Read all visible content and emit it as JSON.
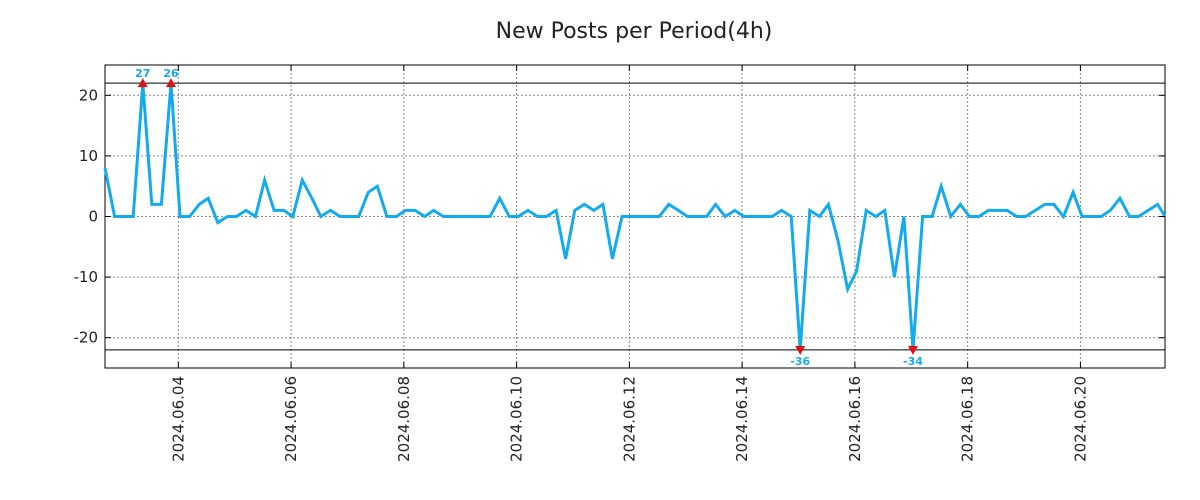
{
  "chart_data": {
    "type": "line",
    "title": "New Posts per Period(4h)",
    "xlabel": "",
    "ylabel": "",
    "xlim_days": [
      -1.3,
      17.5
    ],
    "ylim": [
      -25,
      25
    ],
    "grid": true,
    "clip_range": [
      -22,
      22
    ],
    "series_color": "#14aaee",
    "marker_color": "#dd1111",
    "annotation_color": "#14aaee",
    "y_ticks": [
      20,
      10,
      0,
      -10,
      -20
    ],
    "x_ticks": [
      {
        "day": 0,
        "label": "2024.06.04"
      },
      {
        "day": 2,
        "label": "2024.06.06"
      },
      {
        "day": 4,
        "label": "2024.06.08"
      },
      {
        "day": 6,
        "label": "2024.06.10"
      },
      {
        "day": 8,
        "label": "2024.06.12"
      },
      {
        "day": 10,
        "label": "2024.06.14"
      },
      {
        "day": 12,
        "label": "2024.06.16"
      },
      {
        "day": 14,
        "label": "2024.06.18"
      },
      {
        "day": 16,
        "label": "2024.06.20"
      }
    ],
    "series": [
      {
        "name": "New Posts",
        "points": [
          [
            -1.3,
            8
          ],
          [
            -1.13,
            0
          ],
          [
            -0.97,
            0
          ],
          [
            -0.8,
            0
          ],
          [
            -0.63,
            27
          ],
          [
            -0.47,
            2
          ],
          [
            -0.3,
            2
          ],
          [
            -0.13,
            26
          ],
          [
            0.03,
            0
          ],
          [
            0.2,
            0
          ],
          [
            0.37,
            2
          ],
          [
            0.53,
            3
          ],
          [
            0.7,
            -1
          ],
          [
            0.87,
            0
          ],
          [
            1.03,
            0
          ],
          [
            1.2,
            1
          ],
          [
            1.37,
            0
          ],
          [
            1.53,
            6
          ],
          [
            1.7,
            1
          ],
          [
            1.87,
            1
          ],
          [
            2.03,
            0
          ],
          [
            2.2,
            6
          ],
          [
            2.37,
            3
          ],
          [
            2.53,
            0
          ],
          [
            2.7,
            1
          ],
          [
            2.87,
            0
          ],
          [
            3.03,
            0
          ],
          [
            3.2,
            0
          ],
          [
            3.37,
            4
          ],
          [
            3.53,
            5
          ],
          [
            3.7,
            0
          ],
          [
            3.87,
            0
          ],
          [
            4.03,
            1
          ],
          [
            4.2,
            1
          ],
          [
            4.37,
            0
          ],
          [
            4.53,
            1
          ],
          [
            4.7,
            0
          ],
          [
            4.87,
            0
          ],
          [
            5.03,
            0
          ],
          [
            5.2,
            0
          ],
          [
            5.37,
            0
          ],
          [
            5.53,
            0
          ],
          [
            5.7,
            3
          ],
          [
            5.87,
            0
          ],
          [
            6.03,
            0
          ],
          [
            6.2,
            1
          ],
          [
            6.37,
            0
          ],
          [
            6.53,
            0
          ],
          [
            6.7,
            1
          ],
          [
            6.87,
            -7
          ],
          [
            7.03,
            1
          ],
          [
            7.2,
            2
          ],
          [
            7.37,
            1
          ],
          [
            7.53,
            2
          ],
          [
            7.7,
            -7
          ],
          [
            7.87,
            0
          ],
          [
            8.03,
            0
          ],
          [
            8.2,
            0
          ],
          [
            8.37,
            0
          ],
          [
            8.53,
            0
          ],
          [
            8.7,
            2
          ],
          [
            8.87,
            1
          ],
          [
            9.03,
            0
          ],
          [
            9.2,
            0
          ],
          [
            9.37,
            0
          ],
          [
            9.53,
            2
          ],
          [
            9.7,
            0
          ],
          [
            9.87,
            1
          ],
          [
            10.03,
            0
          ],
          [
            10.2,
            0
          ],
          [
            10.37,
            0
          ],
          [
            10.53,
            0
          ],
          [
            10.7,
            1
          ],
          [
            10.87,
            0
          ],
          [
            11.03,
            -36
          ],
          [
            11.2,
            1
          ],
          [
            11.37,
            0
          ],
          [
            11.53,
            2
          ],
          [
            11.7,
            -4
          ],
          [
            11.87,
            -12
          ],
          [
            12.03,
            -9
          ],
          [
            12.2,
            1
          ],
          [
            12.37,
            0
          ],
          [
            12.53,
            1
          ],
          [
            12.7,
            -10
          ],
          [
            12.87,
            0
          ],
          [
            13.03,
            -34
          ],
          [
            13.2,
            0
          ],
          [
            13.37,
            0
          ],
          [
            13.53,
            5
          ],
          [
            13.7,
            0
          ],
          [
            13.87,
            2
          ],
          [
            14.03,
            0
          ],
          [
            14.2,
            0
          ],
          [
            14.37,
            1
          ],
          [
            14.53,
            1
          ],
          [
            14.7,
            1
          ],
          [
            14.87,
            0
          ],
          [
            15.03,
            0
          ],
          [
            15.2,
            1
          ],
          [
            15.37,
            2
          ],
          [
            15.53,
            2
          ],
          [
            15.7,
            0
          ],
          [
            15.87,
            4
          ],
          [
            16.03,
            0
          ],
          [
            16.2,
            0
          ],
          [
            16.37,
            0
          ],
          [
            16.53,
            1
          ],
          [
            16.7,
            3
          ],
          [
            16.87,
            0
          ],
          [
            17.03,
            0
          ],
          [
            17.2,
            1
          ],
          [
            17.37,
            2
          ],
          [
            17.5,
            0
          ]
        ]
      }
    ],
    "annotations": [
      {
        "day": -0.63,
        "value": 27,
        "label": "27",
        "direction": "up"
      },
      {
        "day": -0.13,
        "value": 26,
        "label": "26",
        "direction": "up"
      },
      {
        "day": 11.03,
        "value": -36,
        "label": "-36",
        "direction": "down"
      },
      {
        "day": 13.03,
        "value": -34,
        "label": "-34",
        "direction": "down"
      }
    ]
  }
}
